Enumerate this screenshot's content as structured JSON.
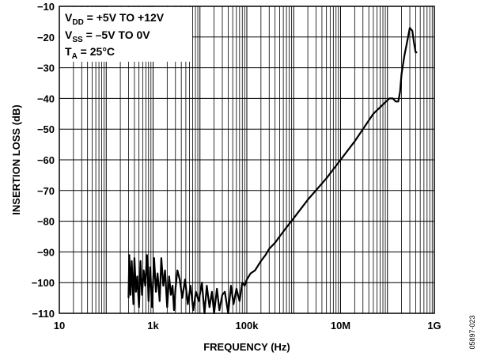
{
  "chart_data": {
    "type": "line",
    "xscale": "log",
    "xlabel": "FREQUENCY (Hz)",
    "ylabel": "INSERTION LOSS (dB)",
    "xlim": [
      10,
      1000000000
    ],
    "ylim": [
      -110,
      -10
    ],
    "x_ticks": [
      10,
      1000,
      100000,
      10000000,
      1000000000
    ],
    "x_tick_labels": [
      "10",
      "1k",
      "100k",
      "10M",
      "1G"
    ],
    "y_ticks": [
      -10,
      -20,
      -30,
      -40,
      -50,
      -60,
      -70,
      -80,
      -90,
      -100,
      -110
    ],
    "y_tick_labels": [
      "−10",
      "−20",
      "−30",
      "−40",
      "−50",
      "−60",
      "−70",
      "−80",
      "−90",
      "−100",
      "−110"
    ],
    "grid": true,
    "annotations": [
      {
        "main": "V",
        "sub": "DD",
        "rest": " = +5V TO +12V"
      },
      {
        "main": "V",
        "sub": "SS",
        "rest": " = –5V TO 0V"
      },
      {
        "main": "T",
        "sub": "A",
        "rest": " = 25°C"
      }
    ],
    "figure_id": "05897-023",
    "series": [
      {
        "x": [
          300,
          310,
          330,
          350,
          380,
          400,
          430,
          460,
          500,
          540,
          580,
          630,
          680,
          740,
          800,
          870,
          950,
          1050,
          1150,
          1250,
          1380,
          1500,
          1650,
          1800,
          2000,
          2200,
          2400,
          2600,
          2800,
          3000,
          3300,
          3700,
          4200,
          4800,
          5500,
          6300,
          7200,
          8200,
          9400,
          11000,
          12500,
          14000,
          16000,
          18000,
          20000,
          23000,
          26000,
          30000,
          34000,
          40000,
          46000,
          52000,
          60000,
          70000,
          80000,
          90000,
          100000,
          120000,
          150000,
          200000,
          250000,
          300000,
          400000,
          500000,
          700000,
          1000000,
          2000000,
          5000000,
          10000000,
          20000000,
          50000000,
          80000000,
          110000000,
          130000000,
          150000000,
          170000000,
          185000000,
          200000000,
          230000000,
          260000000,
          300000000,
          340000000,
          370000000,
          400000000,
          430000000
        ],
        "y": [
          -105,
          -91,
          -104,
          -93,
          -107,
          -92,
          -103,
          -98,
          -108,
          -93,
          -104,
          -96,
          -101,
          -91,
          -106,
          -95,
          -108,
          -92,
          -103,
          -97,
          -106,
          -92,
          -101,
          -96,
          -108,
          -98,
          -104,
          -101,
          -109,
          -102,
          -96,
          -99,
          -105,
          -99,
          -107,
          -101,
          -109,
          -103,
          -106,
          -100,
          -110,
          -101,
          -108,
          -103,
          -110,
          -102,
          -109,
          -104,
          -103,
          -110,
          -101,
          -107,
          -102,
          -106,
          -100,
          -101,
          -99,
          -97,
          -96,
          -93,
          -91,
          -89,
          -87,
          -85,
          -82,
          -79,
          -73,
          -66,
          -60,
          -54,
          -45,
          -42,
          -40,
          -40,
          -41,
          -41,
          -38,
          -32,
          -26,
          -22,
          -17,
          -18,
          -22,
          -25,
          -25
        ]
      }
    ]
  }
}
